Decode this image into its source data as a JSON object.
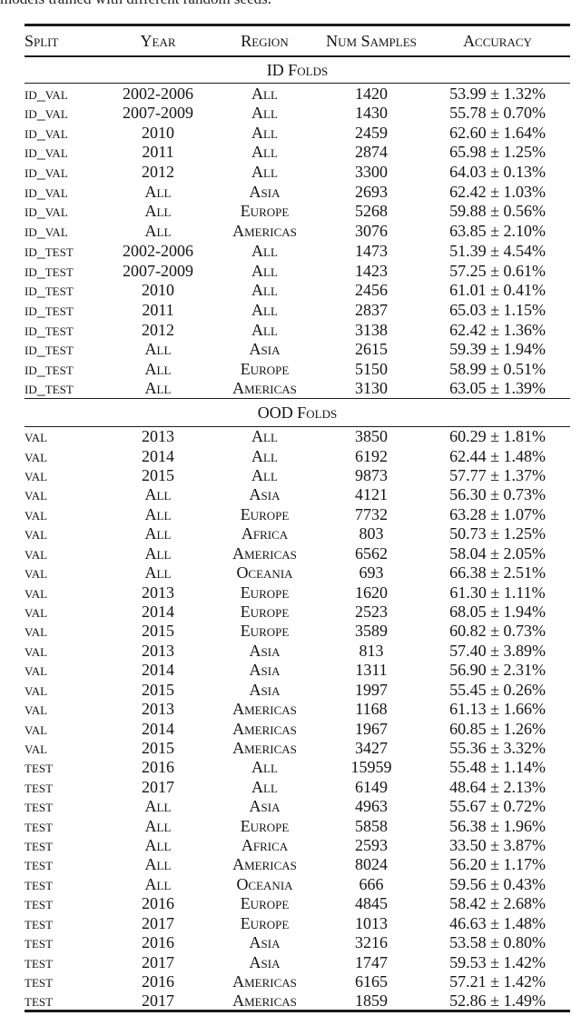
{
  "caption_fragment": "models trained with different random seeds.",
  "table": {
    "columns": [
      "Split",
      "Year",
      "Region",
      "Num Samples",
      "Accuracy"
    ],
    "sections": [
      {
        "title": "ID Folds",
        "rows": [
          [
            "id_val",
            "2002-2006",
            "All",
            "1420",
            "53.99 ± 1.32%"
          ],
          [
            "id_val",
            "2007-2009",
            "All",
            "1430",
            "55.78 ± 0.70%"
          ],
          [
            "id_val",
            "2010",
            "All",
            "2459",
            "62.60 ± 1.64%"
          ],
          [
            "id_val",
            "2011",
            "All",
            "2874",
            "65.98 ± 1.25%"
          ],
          [
            "id_val",
            "2012",
            "All",
            "3300",
            "64.03 ± 0.13%"
          ],
          [
            "id_val",
            "All",
            "Asia",
            "2693",
            "62.42 ± 1.03%"
          ],
          [
            "id_val",
            "All",
            "Europe",
            "5268",
            "59.88 ± 0.56%"
          ],
          [
            "id_val",
            "All",
            "Americas",
            "3076",
            "63.85 ± 2.10%"
          ],
          [
            "id_test",
            "2002-2006",
            "All",
            "1473",
            "51.39 ± 4.54%"
          ],
          [
            "id_test",
            "2007-2009",
            "All",
            "1423",
            "57.25 ± 0.61%"
          ],
          [
            "id_test",
            "2010",
            "All",
            "2456",
            "61.01 ± 0.41%"
          ],
          [
            "id_test",
            "2011",
            "All",
            "2837",
            "65.03 ± 1.15%"
          ],
          [
            "id_test",
            "2012",
            "All",
            "3138",
            "62.42 ± 1.36%"
          ],
          [
            "id_test",
            "All",
            "Asia",
            "2615",
            "59.39 ± 1.94%"
          ],
          [
            "id_test",
            "All",
            "Europe",
            "5150",
            "58.99 ± 0.51%"
          ],
          [
            "id_test",
            "All",
            "Americas",
            "3130",
            "63.05 ± 1.39%"
          ]
        ]
      },
      {
        "title": "OOD Folds",
        "rows": [
          [
            "val",
            "2013",
            "All",
            "3850",
            "60.29 ± 1.81%"
          ],
          [
            "val",
            "2014",
            "All",
            "6192",
            "62.44 ± 1.48%"
          ],
          [
            "val",
            "2015",
            "All",
            "9873",
            "57.77 ± 1.37%"
          ],
          [
            "val",
            "All",
            "Asia",
            "4121",
            "56.30 ± 0.73%"
          ],
          [
            "val",
            "All",
            "Europe",
            "7732",
            "63.28 ± 1.07%"
          ],
          [
            "val",
            "All",
            "Africa",
            "803",
            "50.73 ± 1.25%"
          ],
          [
            "val",
            "All",
            "Americas",
            "6562",
            "58.04 ± 2.05%"
          ],
          [
            "val",
            "All",
            "Oceania",
            "693",
            "66.38 ± 2.51%"
          ],
          [
            "val",
            "2013",
            "Europe",
            "1620",
            "61.30 ± 1.11%"
          ],
          [
            "val",
            "2014",
            "Europe",
            "2523",
            "68.05 ± 1.94%"
          ],
          [
            "val",
            "2015",
            "Europe",
            "3589",
            "60.82 ± 0.73%"
          ],
          [
            "val",
            "2013",
            "Asia",
            "813",
            "57.40 ± 3.89%"
          ],
          [
            "val",
            "2014",
            "Asia",
            "1311",
            "56.90 ± 2.31%"
          ],
          [
            "val",
            "2015",
            "Asia",
            "1997",
            "55.45 ± 0.26%"
          ],
          [
            "val",
            "2013",
            "Americas",
            "1168",
            "61.13 ± 1.66%"
          ],
          [
            "val",
            "2014",
            "Americas",
            "1967",
            "60.85 ± 1.26%"
          ],
          [
            "val",
            "2015",
            "Americas",
            "3427",
            "55.36 ± 3.32%"
          ],
          [
            "test",
            "2016",
            "All",
            "15959",
            "55.48 ± 1.14%"
          ],
          [
            "test",
            "2017",
            "All",
            "6149",
            "48.64 ± 2.13%"
          ],
          [
            "test",
            "All",
            "Asia",
            "4963",
            "55.67 ± 0.72%"
          ],
          [
            "test",
            "All",
            "Europe",
            "5858",
            "56.38 ± 1.96%"
          ],
          [
            "test",
            "All",
            "Africa",
            "2593",
            "33.50 ± 3.87%"
          ],
          [
            "test",
            "All",
            "Americas",
            "8024",
            "56.20 ± 1.17%"
          ],
          [
            "test",
            "All",
            "Oceania",
            "666",
            "59.56 ± 0.43%"
          ],
          [
            "test",
            "2016",
            "Europe",
            "4845",
            "58.42 ± 2.68%"
          ],
          [
            "test",
            "2017",
            "Europe",
            "1013",
            "46.63 ± 1.48%"
          ],
          [
            "test",
            "2016",
            "Asia",
            "3216",
            "53.58 ± 0.80%"
          ],
          [
            "test",
            "2017",
            "Asia",
            "1747",
            "59.53 ± 1.42%"
          ],
          [
            "test",
            "2016",
            "Americas",
            "6165",
            "57.21 ± 1.42%"
          ],
          [
            "test",
            "2017",
            "Americas",
            "1859",
            "52.86 ± 1.49%"
          ]
        ]
      }
    ]
  }
}
